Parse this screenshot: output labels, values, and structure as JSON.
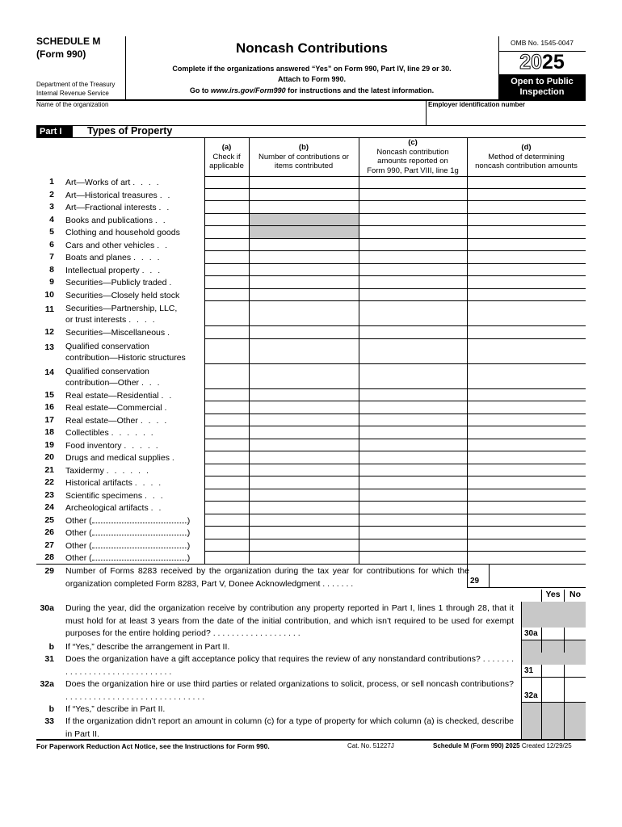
{
  "header": {
    "schedule": "SCHEDULE M",
    "form": "(Form 990)",
    "dept1": "Department of the Treasury",
    "dept2": "Internal Revenue Service",
    "title": "Noncash Contributions",
    "sub1": "Complete if the organizations answered “Yes” on Form 990, Part IV, line 29 or 30.",
    "sub2": "Attach to Form 990.",
    "sub3_pre": "Go to ",
    "sub3_link": "www.irs.gov/Form990",
    "sub3_post": " for instructions and the latest information.",
    "omb": "OMB No. 1545-0047",
    "year_light": "20",
    "year_bold": "25",
    "open1": "Open to Public",
    "open2": "Inspection",
    "name_label": "Name of the organization",
    "ein_label": "Employer identification number"
  },
  "part": {
    "label": "Part I",
    "title": "Types of Property"
  },
  "columns": {
    "a": [
      "(a)",
      "Check if",
      "applicable"
    ],
    "b": [
      "(b)",
      "Number of contributions or",
      "items contributed"
    ],
    "c": [
      "(c)",
      "Noncash contribution",
      "amounts reported on",
      "Form 990, Part VIII, line 1g"
    ],
    "d": [
      "(d)",
      "Method of determining",
      "noncash contribution amounts"
    ]
  },
  "rows": [
    {
      "num": "1",
      "lines": [
        "Art—Works of art"
      ],
      "dots": ". . . ."
    },
    {
      "num": "2",
      "lines": [
        "Art—Historical treasures"
      ],
      "dots": ". ."
    },
    {
      "num": "3",
      "lines": [
        "Art—Fractional interests"
      ],
      "dots": ". ."
    },
    {
      "num": "4",
      "lines": [
        "Books and publications"
      ],
      "dots": ". .",
      "shade_b": true
    },
    {
      "num": "5",
      "lines": [
        "Clothing and household goods"
      ],
      "dots": "",
      "shade_b": true
    },
    {
      "num": "6",
      "lines": [
        "Cars and other vehicles"
      ],
      "dots": ". ."
    },
    {
      "num": "7",
      "lines": [
        "Boats and planes"
      ],
      "dots": ". . . ."
    },
    {
      "num": "8",
      "lines": [
        "Intellectual property"
      ],
      "dots": ". . ."
    },
    {
      "num": "9",
      "lines": [
        "Securities—Publicly traded"
      ],
      "dots": "."
    },
    {
      "num": "10",
      "lines": [
        "Securities—Closely held stock"
      ],
      "dots": ""
    },
    {
      "num": "11",
      "lines": [
        "Securities—Partnership, LLC,",
        "or trust interests"
      ],
      "dots": ". . . ."
    },
    {
      "num": "12",
      "lines": [
        "Securities—Miscellaneous"
      ],
      "dots": "."
    },
    {
      "num": "13",
      "lines": [
        "Qualified conservation",
        "contribution—Historic structures"
      ],
      "dots": ""
    },
    {
      "num": "14",
      "lines": [
        "Qualified conservation",
        "contribution—Other"
      ],
      "dots": ". . ."
    },
    {
      "num": "15",
      "lines": [
        "Real estate—Residential"
      ],
      "dots": ". ."
    },
    {
      "num": "16",
      "lines": [
        "Real estate—Commercial"
      ],
      "dots": "."
    },
    {
      "num": "17",
      "lines": [
        "Real estate—Other"
      ],
      "dots": ". . . ."
    },
    {
      "num": "18",
      "lines": [
        "Collectibles"
      ],
      "dots": ". . . . . ."
    },
    {
      "num": "19",
      "lines": [
        "Food inventory"
      ],
      "dots": ". . . . ."
    },
    {
      "num": "20",
      "lines": [
        "Drugs and medical supplies"
      ],
      "dots": "."
    },
    {
      "num": "21",
      "lines": [
        "Taxidermy"
      ],
      "dots": ". . . . . ."
    },
    {
      "num": "22",
      "lines": [
        "Historical artifacts"
      ],
      "dots": ". . . ."
    },
    {
      "num": "23",
      "lines": [
        "Scientific specimens"
      ],
      "dots": ". . ."
    },
    {
      "num": "24",
      "lines": [
        "Archeological artifacts"
      ],
      "dots": ". ."
    },
    {
      "num": "25",
      "lines": [
        "Other ("
      ],
      "other": true
    },
    {
      "num": "26",
      "lines": [
        "Other ("
      ],
      "other": true
    },
    {
      "num": "27",
      "lines": [
        "Other ("
      ],
      "other": true
    },
    {
      "num": "28",
      "lines": [
        "Other ("
      ],
      "other": true
    }
  ],
  "line29": {
    "num": "29",
    "text": "Number of Forms 8283 received by the organization during the tax year for contributions for which the organization completed Form 8283, Part V, Donee Acknowledgment . . . . . . .",
    "box": "29"
  },
  "yes_label": "Yes",
  "no_label": "No",
  "questions": [
    {
      "num": "30a",
      "text": "During the year, did the organization receive by contribution any property reported in Part I, lines 1 through 28, that it must hold for at least 3 years from the date of the initial contribution, and which isn’t required to be used for exempt purposes for the entire holding period? . . . . . . . . . . . . . . . . . . .",
      "box": "30a"
    },
    {
      "num": "b",
      "text": "If “Yes,” describe the arrangement in Part II."
    },
    {
      "num": "31",
      "text": "Does the organization have a gift acceptance policy that requires the review of any nonstandard contributions? . . . . . . . . . . . . . . . . . . . . . . . . . . . . . .",
      "box": "31"
    },
    {
      "num": "32a",
      "text": "Does the organization hire or use third parties or related organizations to solicit, process, or sell noncash contributions? . . . . . . . . . . . . . . . . . . . . . . . . . . . . . .",
      "box": "32a"
    },
    {
      "num": "b",
      "text": "If “Yes,” describe in Part II."
    },
    {
      "num": "33",
      "text": "If the organization didn’t report an amount in column (c) for a type of property for which column (a) is checked, describe in Part II."
    }
  ],
  "footer": {
    "left": "For Paperwork Reduction Act Notice, see the Instructions for Form 990.",
    "cat": "Cat. No. 51227J",
    "right_bold": "Schedule M (Form 990) 2025",
    "right_plain": " Created 12/29/25"
  },
  "colors": {
    "shade": "#c8c8c8",
    "black": "#000000"
  }
}
